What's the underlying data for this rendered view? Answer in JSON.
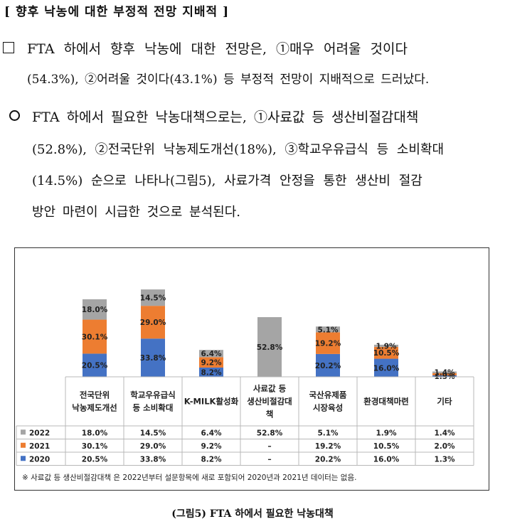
{
  "doc": {
    "heading": "[ 향후 낙농에 대한 부정적 전망 지배적 ]",
    "para1": [
      "FTA 하에서 향후 낙농에 대한 전망은, ①매우 어려울 것이다",
      "(54.3%), ②어려울 것이다(43.1%) 등 부정적 전망이 지배적으로 드러났다."
    ],
    "para2": [
      "FTA 하에서 필요한 낙농대책으로는, ①사료값 등 생산비절감대책",
      "(52.8%), ②전국단위 낙농제도개선(18%), ③학교우유급식 등 소비확대",
      "(14.5%) 순으로 나타나(그림5), 사료가격 안정을 통한 생산비 절감",
      "방안 마련이 시급한 것으로 분석된다."
    ],
    "caption": "(그림5) FTA 하에서 필요한 낙농대책"
  },
  "chart_data": {
    "type": "bar",
    "stacked": true,
    "ylim": [
      0,
      100
    ],
    "categories": [
      [
        "전국단위",
        "낙농제도개선"
      ],
      [
        "학교우유급식",
        "등 소비확대"
      ],
      [
        "K-MILK활성화"
      ],
      [
        "사료값 등",
        "생산비절감대",
        "책"
      ],
      [
        "국산유제품",
        "시장육성"
      ],
      [
        "환경대책마련"
      ],
      [
        "기타"
      ]
    ],
    "series": [
      {
        "name": "2020",
        "color": "#4472C4",
        "values": [
          20.5,
          33.8,
          8.2,
          null,
          20.2,
          16.0,
          1.3
        ],
        "labels": [
          "20.5%",
          "33.8%",
          "8.2%",
          "–",
          "20.2%",
          "16.0%",
          "1.3%"
        ]
      },
      {
        "name": "2021",
        "color": "#ED7D31",
        "values": [
          30.1,
          29.0,
          9.2,
          null,
          19.2,
          10.5,
          2.0
        ],
        "labels": [
          "30.1%",
          "29.0%",
          "9.2%",
          "–",
          "19.2%",
          "10.5%",
          "2.0%"
        ]
      },
      {
        "name": "2022",
        "color": "#A5A5A5",
        "values": [
          18.0,
          14.5,
          6.4,
          52.8,
          5.1,
          1.9,
          1.4
        ],
        "labels": [
          "18.0%",
          "14.5%",
          "6.4%",
          "52.8%",
          "5.1%",
          "1.9%",
          "1.4%"
        ]
      }
    ],
    "table_order": [
      "2022",
      "2021",
      "2020"
    ],
    "footnote": "※ 사료값 등 생산비절감대책 은 2022년부터 설문항목에 새로 포함되어 2020년과 2021년 데이터는 없음."
  }
}
